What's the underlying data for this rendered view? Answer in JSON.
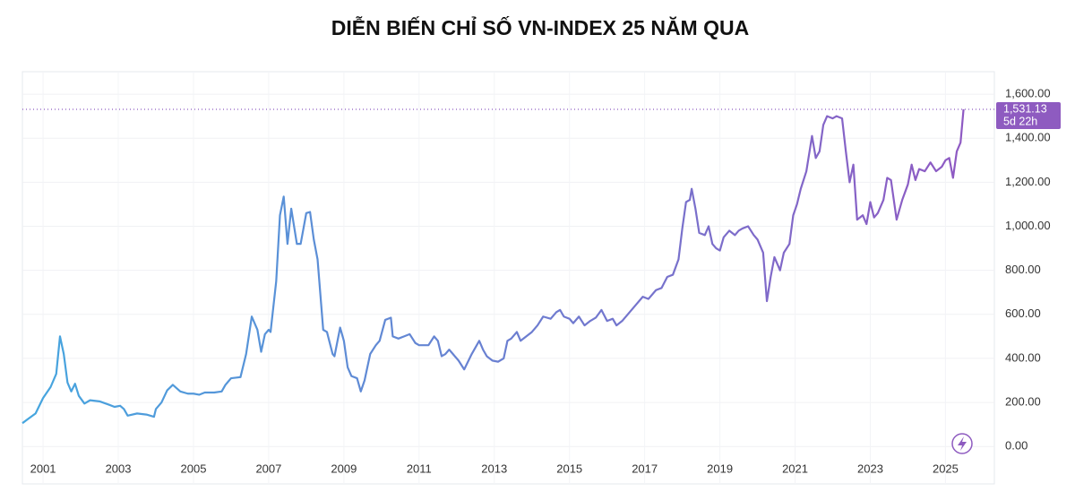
{
  "chart_data": {
    "type": "line",
    "title": "DIỄN BIẾN CHỈ SỐ VN-INDEX 25 NĂM QUA",
    "x": [
      2000.45,
      2000.6,
      2000.8,
      2001.0,
      2001.2,
      2001.35,
      2001.45,
      2001.55,
      2001.65,
      2001.75,
      2001.85,
      2001.95,
      2002.1,
      2002.25,
      2002.5,
      2002.75,
      2002.9,
      2003.05,
      2003.15,
      2003.25,
      2003.5,
      2003.75,
      2003.95,
      2004.0,
      2004.15,
      2004.3,
      2004.45,
      2004.65,
      2004.85,
      2005.0,
      2005.15,
      2005.3,
      2005.55,
      2005.75,
      2005.85,
      2006.0,
      2006.25,
      2006.4,
      2006.55,
      2006.7,
      2006.8,
      2006.9,
      2007.0,
      2007.05,
      2007.2,
      2007.3,
      2007.4,
      2007.5,
      2007.6,
      2007.75,
      2007.85,
      2008.0,
      2008.1,
      2008.2,
      2008.3,
      2008.45,
      2008.55,
      2008.7,
      2008.75,
      2008.9,
      2009.0,
      2009.1,
      2009.2,
      2009.35,
      2009.45,
      2009.55,
      2009.7,
      2009.85,
      2009.95,
      2010.1,
      2010.25,
      2010.3,
      2010.45,
      2010.6,
      2010.75,
      2010.9,
      2011.0,
      2011.25,
      2011.4,
      2011.5,
      2011.6,
      2011.7,
      2011.8,
      2011.9,
      2012.05,
      2012.2,
      2012.4,
      2012.6,
      2012.7,
      2012.8,
      2012.95,
      2013.1,
      2013.25,
      2013.35,
      2013.45,
      2013.6,
      2013.7,
      2013.85,
      2014.0,
      2014.15,
      2014.3,
      2014.5,
      2014.65,
      2014.75,
      2014.85,
      2015.0,
      2015.1,
      2015.25,
      2015.4,
      2015.55,
      2015.7,
      2015.85,
      2016.0,
      2016.15,
      2016.25,
      2016.4,
      2016.55,
      2016.75,
      2016.95,
      2017.1,
      2017.3,
      2017.45,
      2017.6,
      2017.75,
      2017.9,
      2018.0,
      2018.1,
      2018.2,
      2018.25,
      2018.35,
      2018.45,
      2018.6,
      2018.7,
      2018.8,
      2018.9,
      2019.0,
      2019.1,
      2019.25,
      2019.4,
      2019.5,
      2019.6,
      2019.75,
      2019.9,
      2020.0,
      2020.15,
      2020.25,
      2020.35,
      2020.45,
      2020.55,
      2020.6,
      2020.7,
      2020.85,
      2020.95,
      2021.05,
      2021.15,
      2021.3,
      2021.45,
      2021.55,
      2021.65,
      2021.75,
      2021.85,
      2022.0,
      2022.1,
      2022.25,
      2022.35,
      2022.45,
      2022.55,
      2022.65,
      2022.8,
      2022.9,
      2023.0,
      2023.1,
      2023.2,
      2023.35,
      2023.45,
      2023.55,
      2023.7,
      2023.85,
      2024.0,
      2024.1,
      2024.2,
      2024.3,
      2024.45,
      2024.6,
      2024.75,
      2024.9,
      2025.0,
      2025.1,
      2025.2,
      2025.3,
      2025.4,
      2025.48
    ],
    "series": [
      {
        "colors": [
          "#45a6df",
          "#9157c2"
        ],
        "values": [
          106,
          125,
          150,
          220,
          270,
          330,
          500,
          420,
          290,
          250,
          285,
          230,
          195,
          210,
          205,
          190,
          180,
          185,
          170,
          140,
          150,
          145,
          135,
          170,
          200,
          255,
          280,
          250,
          240,
          240,
          235,
          245,
          245,
          250,
          280,
          310,
          315,
          420,
          590,
          530,
          430,
          510,
          530,
          520,
          750,
          1050,
          1135,
          920,
          1080,
          920,
          920,
          1060,
          1065,
          940,
          850,
          530,
          520,
          420,
          410,
          540,
          480,
          360,
          320,
          310,
          250,
          300,
          420,
          460,
          480,
          575,
          585,
          500,
          490,
          500,
          510,
          470,
          460,
          460,
          500,
          480,
          410,
          420,
          440,
          420,
          390,
          350,
          420,
          480,
          440,
          410,
          390,
          385,
          400,
          480,
          490,
          520,
          480,
          500,
          520,
          550,
          590,
          580,
          610,
          620,
          590,
          580,
          560,
          590,
          550,
          570,
          585,
          620,
          570,
          580,
          550,
          570,
          600,
          640,
          680,
          670,
          710,
          720,
          770,
          780,
          850,
          990,
          1110,
          1120,
          1170,
          1080,
          970,
          960,
          1000,
          920,
          900,
          890,
          950,
          980,
          960,
          980,
          990,
          1000,
          960,
          940,
          880,
          660,
          770,
          860,
          820,
          800,
          880,
          920,
          1050,
          1100,
          1170,
          1250,
          1410,
          1310,
          1340,
          1460,
          1500,
          1490,
          1500,
          1490,
          1340,
          1200,
          1280,
          1030,
          1050,
          1010,
          1110,
          1040,
          1060,
          1120,
          1220,
          1210,
          1030,
          1120,
          1190,
          1280,
          1210,
          1260,
          1250,
          1290,
          1250,
          1270,
          1300,
          1310,
          1220,
          1340,
          1380,
          1531.13
        ]
      }
    ],
    "xlim": [
      2000.45,
      2026.3
    ],
    "xticks": [
      2001,
      2003,
      2005,
      2007,
      2009,
      2011,
      2013,
      2015,
      2017,
      2019,
      2021,
      2023,
      2025
    ],
    "ylim": [
      -170,
      1702
    ],
    "yticks": [
      {
        "value": 0,
        "label": "0.00"
      },
      {
        "value": 200,
        "label": "200.00"
      },
      {
        "value": 400,
        "label": "400.00"
      },
      {
        "value": 600,
        "label": "600.00"
      },
      {
        "value": 800,
        "label": "800.00"
      },
      {
        "value": 1000,
        "label": "1,000.00"
      },
      {
        "value": 1200,
        "label": "1,200.00"
      },
      {
        "value": 1400,
        "label": "1,400.00"
      },
      {
        "value": 1600,
        "label": "1,600.00"
      }
    ],
    "grid": true,
    "last_price": {
      "value": 1531.13,
      "label": "1,531.13"
    },
    "countdown": "5d 22h",
    "last_color": "#8e5bc0"
  }
}
